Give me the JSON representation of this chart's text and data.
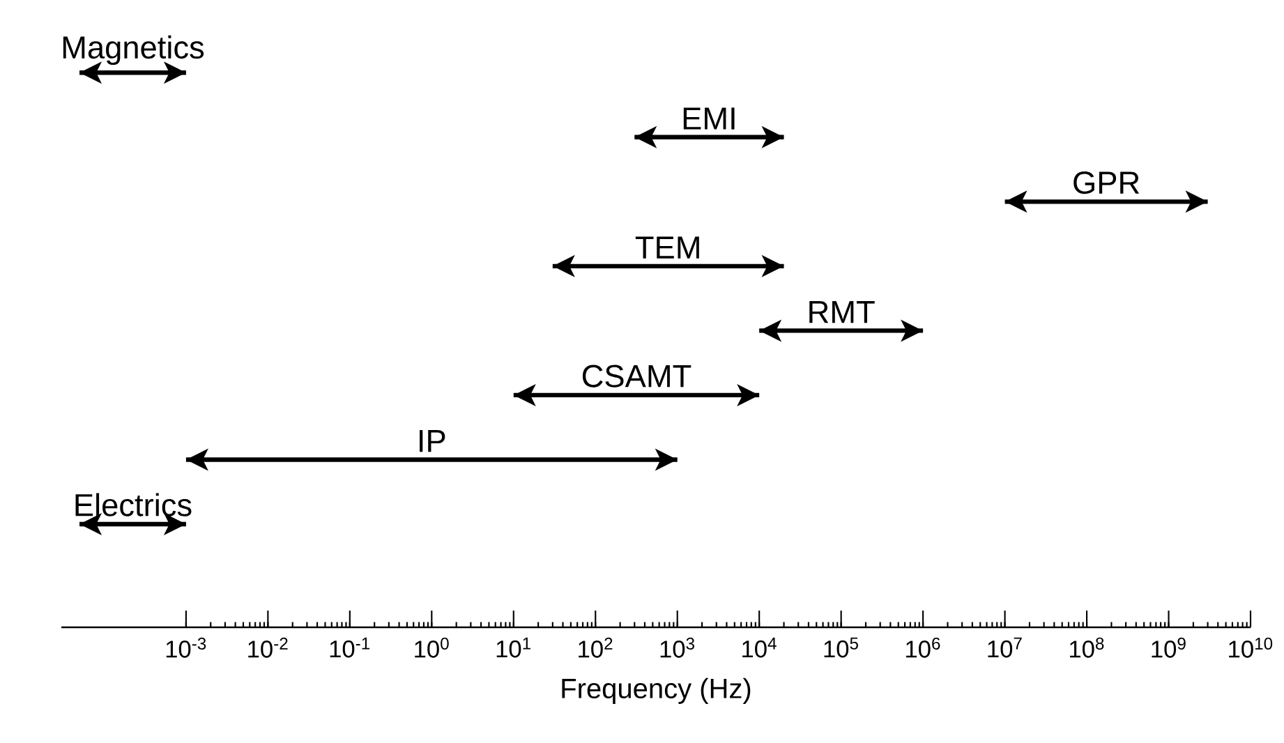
{
  "chart_data": {
    "type": "bar",
    "orientation": "horizontal",
    "log": "x",
    "xlabel": "Frequency (Hz)",
    "categories": [
      "Magnetics",
      "EMI",
      "GPR",
      "TEM",
      "RMT",
      "CSAMT",
      "IP",
      "Electrics"
    ],
    "base": [
      5e-05,
      300,
      10000000,
      30,
      10000,
      10,
      0.001,
      5e-05
    ],
    "values": [
      0.00095,
      19700,
      2990000000,
      19970,
      990000,
      9990,
      999.999,
      0.00095
    ],
    "color": "#000000",
    "xlim": [
      3e-05,
      10000000000
    ],
    "xticks": [
      {
        "value": 0.001,
        "label": "10$^{-3}$"
      },
      {
        "value": 0.01,
        "label": "10$^{-2}$"
      },
      {
        "value": 0.1,
        "label": "10$^{-1}$"
      },
      {
        "value": 1,
        "label": "10$^{0}$"
      },
      {
        "value": 10,
        "label": "10$^{1}$"
      },
      {
        "value": 100,
        "label": "10$^{2}$"
      },
      {
        "value": 1000,
        "label": "10$^{3}$"
      },
      {
        "value": 10000,
        "label": "10$^{4}$"
      },
      {
        "value": 100000,
        "label": "10$^{5}$"
      },
      {
        "value": 1000000,
        "label": "10$^{6}$"
      },
      {
        "value": 10000000,
        "label": "10$^{7}$"
      },
      {
        "value": 100000000,
        "label": "10$^{8}$"
      },
      {
        "value": 1000000000,
        "label": "10$^{9}$"
      },
      {
        "value": 10000000000,
        "label": "10$^{10}$"
      }
    ]
  }
}
